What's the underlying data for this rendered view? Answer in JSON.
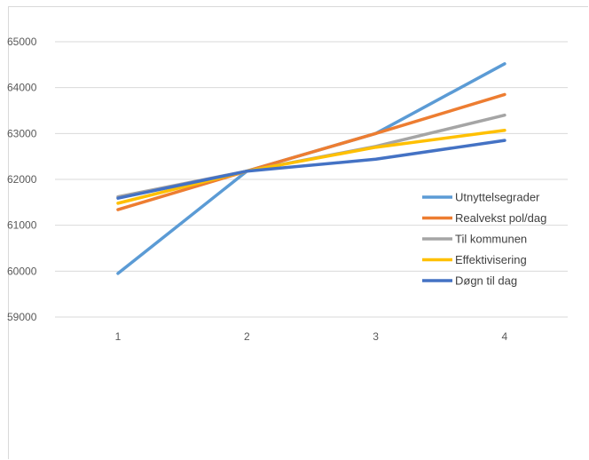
{
  "chart_data": {
    "type": "line",
    "title": "",
    "xlabel": "",
    "ylabel": "",
    "categories": [
      "1",
      "2",
      "3",
      "4"
    ],
    "ylim": [
      59000,
      65000
    ],
    "yticks": [
      59000,
      60000,
      61000,
      62000,
      63000,
      64000,
      65000
    ],
    "grid": true,
    "legend": "right-middle",
    "series": [
      {
        "name": "Utnyttelsegrader",
        "color": "#5b9bd5",
        "values": [
          59950,
          62180,
          63000,
          64520
        ]
      },
      {
        "name": "Realvekst pol/dag",
        "color": "#ed7d31",
        "values": [
          61340,
          62180,
          63000,
          63850
        ]
      },
      {
        "name": "Til kommunen",
        "color": "#a5a5a5",
        "values": [
          61620,
          62180,
          62720,
          63400
        ]
      },
      {
        "name": "Effektivisering",
        "color": "#ffc000",
        "values": [
          61480,
          62180,
          62700,
          63070
        ]
      },
      {
        "name": "Døgn til dag",
        "color": "#4472c4",
        "values": [
          61590,
          62180,
          62440,
          62850
        ]
      }
    ]
  }
}
